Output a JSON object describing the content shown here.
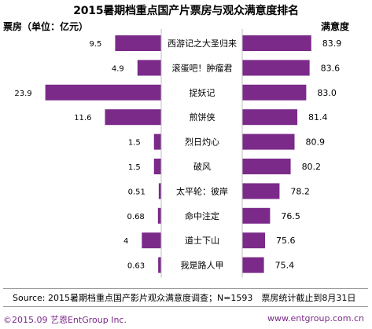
{
  "title": "2015暑期档重点国产片票房与观众满意度排名",
  "chart_data": {
    "type": "bar",
    "title": "2015暑期档重点国产片票房与观众满意度排名",
    "left_label": "票房（单位：亿元）",
    "right_label": "满意度",
    "categories": [
      "西游记之大圣归来",
      "滚蛋吧！肿瘤君",
      "捉妖记",
      "煎饼侠",
      "烈日灼心",
      "破风",
      "太平轮：彼岸",
      "命中注定",
      "道士下山",
      "我是路人甲"
    ],
    "series": [
      {
        "name": "票房（单位：亿元）",
        "values": [
          9.5,
          4.9,
          23.9,
          11.6,
          1.5,
          1.5,
          0.51,
          0.68,
          4,
          0.63
        ]
      },
      {
        "name": "满意度",
        "values": [
          83.9,
          83.6,
          83.0,
          81.4,
          80.9,
          80.2,
          78.2,
          76.5,
          75.6,
          75.4
        ]
      }
    ],
    "box_office_labels": [
      "9.5",
      "4.9",
      "23.9",
      "11.6",
      "1.5",
      "1.5",
      "0.51",
      "0.68",
      "4",
      "0.63"
    ],
    "satisfaction_labels": [
      "83.9",
      "83.6",
      "83.0",
      "81.4",
      "80.9",
      "80.2",
      "78.2",
      "76.5",
      "75.6",
      "75.4"
    ],
    "left_xlim": [
      0,
      24
    ],
    "right_xlim": [
      71.5,
      84.5
    ],
    "bar_color": "#7b2a8a"
  },
  "source": "Source: 2015暑期档重点国产影片观众满意度调查；N=1593　票房统计截止到8月31日",
  "footer": {
    "copyright": "©2015.09  艺恩EntGroup Inc.",
    "website": "www.entgroup.com.cn"
  }
}
